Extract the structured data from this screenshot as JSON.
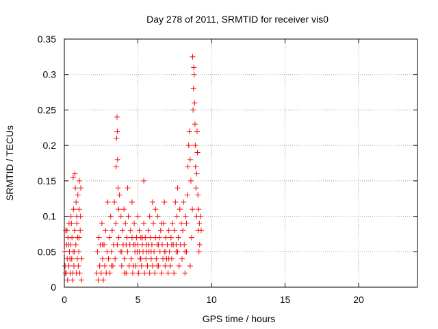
{
  "chart_data": {
    "type": "scatter",
    "title": "Day 278 of 2011, SRMTID for receiver vis0",
    "xlabel": "GPS time / hours",
    "ylabel": "SRMTID / TECUs",
    "xlim": [
      0,
      24
    ],
    "ylim": [
      0,
      0.35
    ],
    "x_ticks": [
      0,
      5,
      10,
      15,
      20
    ],
    "x_tick_labels": [
      "0",
      "5",
      "10",
      "15",
      "20"
    ],
    "y_ticks": [
      0,
      0.05,
      0.1,
      0.15,
      0.2,
      0.25,
      0.3,
      0.35
    ],
    "y_tick_labels": [
      "0",
      "0.05",
      "0.1",
      "0.15",
      "0.2",
      "0.25",
      "0.3",
      "0.35"
    ],
    "grid": true,
    "marker": "+",
    "marker_color": "#ff0000",
    "series": [
      {
        "points": [
          [
            0.0,
            0.05
          ],
          [
            0.05,
            0.03
          ],
          [
            0.1,
            0.08
          ],
          [
            0.12,
            0.02
          ],
          [
            0.15,
            0.06
          ],
          [
            0.2,
            0.04
          ],
          [
            0.22,
            0.01
          ],
          [
            0.25,
            0.07
          ],
          [
            0.3,
            0.03
          ],
          [
            0.32,
            0.09
          ],
          [
            0.35,
            0.05
          ],
          [
            0.4,
            0.02
          ],
          [
            0.42,
            0.06
          ],
          [
            0.45,
            0.1
          ],
          [
            0.5,
            0.04
          ],
          [
            0.52,
            0.07
          ],
          [
            0.55,
            0.01
          ],
          [
            0.6,
            0.05
          ],
          [
            0.62,
            0.11
          ],
          [
            0.65,
            0.03
          ],
          [
            0.7,
            0.08
          ],
          [
            0.72,
            0.16
          ],
          [
            0.75,
            0.14
          ],
          [
            0.78,
            0.06
          ],
          [
            0.8,
            0.12
          ],
          [
            0.82,
            0.02
          ],
          [
            0.85,
            0.09
          ],
          [
            0.88,
            0.04
          ],
          [
            0.9,
            0.07
          ],
          [
            0.92,
            0.13
          ],
          [
            0.95,
            0.03
          ],
          [
            0.98,
            0.05
          ],
          [
            1.0,
            0.11
          ],
          [
            1.02,
            0.15
          ],
          [
            1.05,
            0.02
          ],
          [
            1.08,
            0.08
          ],
          [
            1.1,
            0.1
          ],
          [
            1.12,
            0.14
          ],
          [
            1.15,
            0.01
          ],
          [
            1.18,
            0.04
          ],
          [
            0.08,
            0.02
          ],
          [
            0.18,
            0.08
          ],
          [
            0.28,
            0.06
          ],
          [
            0.38,
            0.04
          ],
          [
            0.48,
            0.09
          ],
          [
            0.58,
            0.02
          ],
          [
            0.68,
            0.05
          ],
          [
            0.85,
            0.1
          ],
          [
            1.0,
            0.07
          ],
          [
            0.6,
            0.155
          ],
          [
            2.2,
            0.02
          ],
          [
            2.25,
            0.05
          ],
          [
            2.3,
            0.01
          ],
          [
            2.35,
            0.07
          ],
          [
            2.4,
            0.03
          ],
          [
            2.45,
            0.06
          ],
          [
            2.5,
            0.02
          ],
          [
            2.55,
            0.09
          ],
          [
            2.6,
            0.04
          ],
          [
            2.65,
            0.01
          ],
          [
            2.7,
            0.06
          ],
          [
            2.75,
            0.03
          ],
          [
            2.8,
            0.08
          ],
          [
            2.85,
            0.02
          ],
          [
            2.9,
            0.05
          ],
          [
            2.95,
            0.12
          ],
          [
            3.0,
            0.04
          ],
          [
            3.05,
            0.07
          ],
          [
            3.1,
            0.02
          ],
          [
            3.15,
            0.1
          ],
          [
            3.2,
            0.05
          ],
          [
            3.25,
            0.08
          ],
          [
            3.3,
            0.03
          ],
          [
            3.35,
            0.06
          ],
          [
            3.4,
            0.12
          ],
          [
            3.45,
            0.04
          ],
          [
            3.5,
            0.09
          ],
          [
            3.52,
            0.17
          ],
          [
            3.55,
            0.21
          ],
          [
            3.58,
            0.24
          ],
          [
            3.6,
            0.22
          ],
          [
            3.62,
            0.18
          ],
          [
            3.65,
            0.14
          ],
          [
            3.68,
            0.11
          ],
          [
            3.7,
            0.07
          ],
          [
            3.75,
            0.13
          ],
          [
            3.8,
            0.05
          ],
          [
            3.85,
            0.1
          ],
          [
            3.9,
            0.03
          ],
          [
            3.95,
            0.08
          ],
          [
            4.0,
            0.06
          ],
          [
            4.05,
            0.11
          ],
          [
            4.1,
            0.04
          ],
          [
            4.15,
            0.09
          ],
          [
            4.2,
            0.02
          ],
          [
            4.25,
            0.07
          ],
          [
            4.3,
            0.05
          ],
          [
            4.35,
            0.1
          ],
          [
            4.4,
            0.03
          ],
          [
            4.45,
            0.06
          ],
          [
            4.5,
            0.08
          ],
          [
            4.55,
            0.04
          ],
          [
            4.6,
            0.07
          ],
          [
            4.65,
            0.02
          ],
          [
            4.7,
            0.06
          ],
          [
            4.75,
            0.09
          ],
          [
            4.8,
            0.05
          ],
          [
            4.85,
            0.03
          ],
          [
            4.9,
            0.07
          ],
          [
            4.95,
            0.05
          ],
          [
            5.0,
            0.06
          ],
          [
            5.05,
            0.02
          ],
          [
            5.1,
            0.08
          ],
          [
            5.15,
            0.04
          ],
          [
            5.2,
            0.07
          ],
          [
            5.25,
            0.03
          ],
          [
            5.3,
            0.06
          ],
          [
            5.35,
            0.05
          ],
          [
            5.4,
            0.09
          ],
          [
            5.45,
            0.02
          ],
          [
            5.5,
            0.07
          ],
          [
            5.55,
            0.04
          ],
          [
            5.6,
            0.06
          ],
          [
            5.65,
            0.03
          ],
          [
            5.7,
            0.08
          ],
          [
            5.75,
            0.05
          ],
          [
            5.8,
            0.02
          ],
          [
            5.85,
            0.07
          ],
          [
            5.9,
            0.04
          ],
          [
            5.95,
            0.06
          ],
          [
            6.0,
            0.03
          ],
          [
            6.05,
            0.09
          ],
          [
            6.1,
            0.05
          ],
          [
            6.15,
            0.02
          ],
          [
            6.2,
            0.07
          ],
          [
            6.25,
            0.04
          ],
          [
            6.3,
            0.06
          ],
          [
            6.35,
            0.1
          ],
          [
            6.4,
            0.03
          ],
          [
            6.45,
            0.07
          ],
          [
            6.5,
            0.05
          ],
          [
            6.55,
            0.08
          ],
          [
            6.6,
            0.02
          ],
          [
            6.65,
            0.06
          ],
          [
            6.7,
            0.04
          ],
          [
            6.75,
            0.09
          ],
          [
            6.8,
            0.05
          ],
          [
            6.85,
            0.03
          ],
          [
            6.9,
            0.07
          ],
          [
            6.95,
            0.04
          ],
          [
            7.0,
            0.06
          ],
          [
            7.05,
            0.02
          ],
          [
            7.1,
            0.08
          ],
          [
            7.15,
            0.05
          ],
          [
            7.2,
            0.03
          ],
          [
            7.25,
            0.07
          ],
          [
            7.3,
            0.04
          ],
          [
            7.35,
            0.09
          ],
          [
            7.4,
            0.06
          ],
          [
            7.45,
            0.02
          ],
          [
            7.5,
            0.08
          ],
          [
            7.55,
            0.12
          ],
          [
            7.6,
            0.05
          ],
          [
            7.65,
            0.1
          ],
          [
            7.7,
            0.14
          ],
          [
            7.75,
            0.07
          ],
          [
            7.8,
            0.03
          ],
          [
            7.85,
            0.11
          ],
          [
            7.9,
            0.06
          ],
          [
            7.95,
            0.09
          ],
          [
            8.0,
            0.04
          ],
          [
            8.05,
            0.08
          ],
          [
            8.1,
            0.12
          ],
          [
            8.15,
            0.06
          ],
          [
            8.2,
            0.02
          ],
          [
            8.25,
            0.1
          ],
          [
            8.3,
            0.05
          ],
          [
            8.35,
            0.13
          ],
          [
            8.4,
            0.17
          ],
          [
            8.45,
            0.2
          ],
          [
            8.5,
            0.22
          ],
          [
            8.55,
            0.18
          ],
          [
            8.6,
            0.15
          ],
          [
            8.65,
            0.07
          ],
          [
            8.7,
            0.11
          ],
          [
            8.75,
            0.25
          ],
          [
            8.78,
            0.28
          ],
          [
            8.8,
            0.31
          ],
          [
            8.82,
            0.3
          ],
          [
            8.85,
            0.26
          ],
          [
            8.88,
            0.23
          ],
          [
            8.9,
            0.2
          ],
          [
            8.92,
            0.17
          ],
          [
            8.95,
            0.14
          ],
          [
            8.98,
            0.1
          ],
          [
            9.0,
            0.16
          ],
          [
            9.02,
            0.22
          ],
          [
            9.05,
            0.19
          ],
          [
            9.08,
            0.13
          ],
          [
            9.1,
            0.08
          ],
          [
            9.12,
            0.11
          ],
          [
            9.15,
            0.05
          ],
          [
            9.18,
            0.09
          ],
          [
            9.2,
            0.06
          ],
          [
            9.25,
            0.1
          ],
          [
            9.3,
            0.08
          ],
          [
            8.72,
            0.325
          ],
          [
            8.2,
            0.05
          ],
          [
            8.3,
            0.09
          ],
          [
            8.55,
            0.03
          ],
          [
            4.6,
            0.12
          ],
          [
            5.0,
            0.1
          ],
          [
            5.4,
            0.15
          ],
          [
            6.2,
            0.11
          ],
          [
            6.8,
            0.12
          ],
          [
            4.3,
            0.14
          ],
          [
            5.8,
            0.1
          ],
          [
            6.0,
            0.12
          ],
          [
            6.6,
            0.09
          ],
          [
            5.2,
            0.04
          ],
          [
            5.6,
            0.05
          ],
          [
            6.3,
            0.03
          ],
          [
            6.9,
            0.05
          ],
          [
            7.3,
            0.06
          ],
          [
            7.7,
            0.05
          ],
          [
            4.2,
            0.06
          ],
          [
            3.9,
            0.05
          ],
          [
            4.8,
            0.06
          ],
          [
            5.3,
            0.07
          ],
          [
            5.9,
            0.05
          ],
          [
            6.4,
            0.06
          ],
          [
            7.1,
            0.04
          ],
          [
            7.6,
            0.06
          ],
          [
            2.6,
            0.06
          ],
          [
            3.2,
            0.03
          ],
          [
            3.6,
            0.06
          ],
          [
            4.1,
            0.02
          ],
          [
            4.7,
            0.03
          ],
          [
            5.1,
            0.05
          ],
          [
            5.7,
            0.06
          ]
        ]
      }
    ]
  }
}
